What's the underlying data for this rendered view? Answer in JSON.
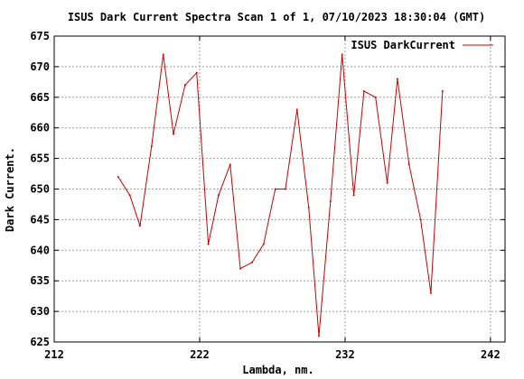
{
  "chart_data": {
    "type": "line",
    "title": "ISUS Dark Current Spectra Scan 1 of 1, 07/10/2023 18:30:04 (GMT)",
    "xlabel": "Lambda, nm.",
    "ylabel": "Dark Current.",
    "xlim": [
      212,
      243
    ],
    "ylim": [
      625,
      675
    ],
    "x_ticks": [
      "212",
      "222",
      "232",
      "242"
    ],
    "y_ticks": [
      "625",
      "630",
      "635",
      "640",
      "645",
      "650",
      "655",
      "660",
      "665",
      "670",
      "675"
    ],
    "grid": true,
    "legend": "top-right",
    "series": [
      {
        "name": "ISUS DarkCurrent",
        "color": "#cc0000",
        "x": [
          216.4,
          217.2,
          217.9,
          218.7,
          219.5,
          220.2,
          221.0,
          221.8,
          222.6,
          223.3,
          224.1,
          224.8,
          225.6,
          226.4,
          227.2,
          227.9,
          228.7,
          229.5,
          230.2,
          231.0,
          231.8,
          232.6,
          233.3,
          234.1,
          234.9,
          235.6,
          236.4,
          237.2,
          237.9,
          238.7
        ],
        "y": [
          652,
          649,
          644,
          657,
          672,
          659,
          667,
          669,
          641,
          649,
          654,
          637,
          638,
          641,
          650,
          650,
          663,
          647,
          626,
          648,
          672,
          649,
          666,
          665,
          651,
          668,
          654,
          645,
          633,
          666
        ]
      }
    ]
  }
}
